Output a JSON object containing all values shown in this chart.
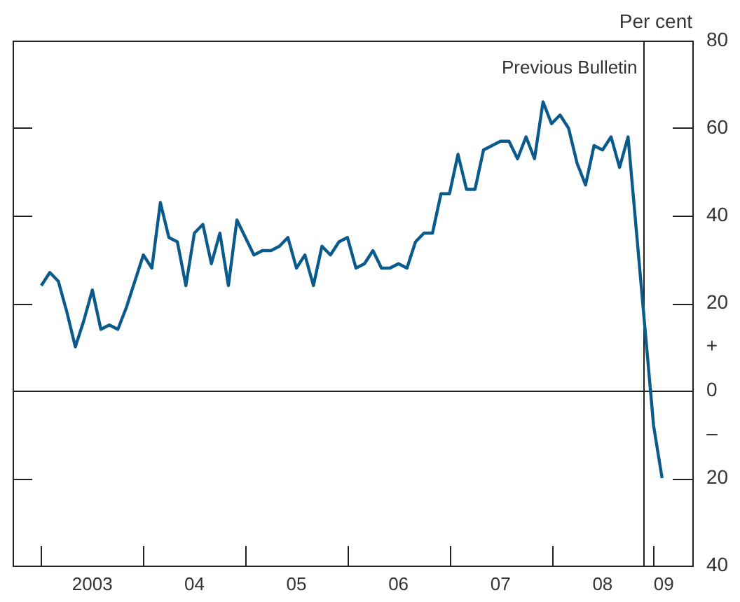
{
  "chart_data": {
    "type": "line",
    "ylabel": "Per cent",
    "x": [
      "2003-01",
      "2003-02",
      "2003-03",
      "2003-04",
      "2003-05",
      "2003-06",
      "2003-07",
      "2003-08",
      "2003-09",
      "2003-10",
      "2003-11",
      "2003-12",
      "2004-01",
      "2004-02",
      "2004-03",
      "2004-04",
      "2004-05",
      "2004-06",
      "2004-07",
      "2004-08",
      "2004-09",
      "2004-10",
      "2004-11",
      "2004-12",
      "2005-01",
      "2005-02",
      "2005-03",
      "2005-04",
      "2005-05",
      "2005-06",
      "2005-07",
      "2005-08",
      "2005-09",
      "2005-10",
      "2005-11",
      "2005-12",
      "2006-01",
      "2006-02",
      "2006-03",
      "2006-04",
      "2006-05",
      "2006-06",
      "2006-07",
      "2006-08",
      "2006-09",
      "2006-10",
      "2006-11",
      "2006-12",
      "2007-01",
      "2007-02",
      "2007-03",
      "2007-04",
      "2007-05",
      "2007-06",
      "2007-07",
      "2007-08",
      "2007-09",
      "2007-10",
      "2007-11",
      "2007-12",
      "2008-01",
      "2008-02",
      "2008-03",
      "2008-04",
      "2008-05",
      "2008-06",
      "2008-07",
      "2008-08",
      "2008-09",
      "2008-10",
      "2008-11",
      "2008-12",
      "2009-01",
      "2009-02"
    ],
    "series": [
      {
        "color": "#0b5a8c",
        "values": [
          24,
          27,
          25,
          18,
          10,
          16,
          23,
          14,
          15,
          14,
          19,
          25,
          31,
          28,
          43,
          35,
          34,
          24,
          36,
          38,
          29,
          36,
          24,
          39,
          35,
          31,
          32,
          32,
          33,
          35,
          28,
          31,
          24,
          33,
          31,
          34,
          35,
          28,
          29,
          32,
          28,
          28,
          29,
          28,
          34,
          36,
          36,
          45,
          45,
          54,
          46,
          46,
          55,
          56,
          57,
          57,
          53,
          58,
          53,
          66,
          61,
          63,
          60,
          52,
          47,
          56,
          55,
          58,
          51,
          58,
          36,
          14,
          -8,
          -20
        ]
      }
    ],
    "xlim": [
      "2002-09-20",
      "2009-05-18"
    ],
    "xticks": [
      {
        "value": "2003-01-01",
        "label": null
      },
      {
        "value": "2003-07-01",
        "label": "2003"
      },
      {
        "value": "2004-01-01",
        "label": null
      },
      {
        "value": "2004-07-01",
        "label": "04"
      },
      {
        "value": "2005-01-01",
        "label": null
      },
      {
        "value": "2005-07-01",
        "label": "05"
      },
      {
        "value": "2006-01-01",
        "label": null
      },
      {
        "value": "2006-07-01",
        "label": "06"
      },
      {
        "value": "2007-01-01",
        "label": null
      },
      {
        "value": "2007-07-01",
        "label": "07"
      },
      {
        "value": "2008-01-01",
        "label": null
      },
      {
        "value": "2008-07-01",
        "label": "08"
      },
      {
        "value": "2009-01-01",
        "label": null
      },
      {
        "value": "2009-02-07",
        "label": "09"
      }
    ],
    "ylim": [
      -40,
      80
    ],
    "yticks": [
      80,
      60,
      40,
      20,
      0,
      {
        "value": -20,
        "label": "20"
      },
      {
        "value": -40,
        "label": "40"
      }
    ],
    "ref_lines": [
      {
        "axis": "y",
        "value": 0
      },
      {
        "axis": "x",
        "value": "2008-11-24",
        "label": "Previous Bulletin"
      }
    ],
    "annotations": [
      "+",
      "–"
    ],
    "grid": false,
    "legend": false,
    "marker": "none",
    "line_style": "solid"
  }
}
